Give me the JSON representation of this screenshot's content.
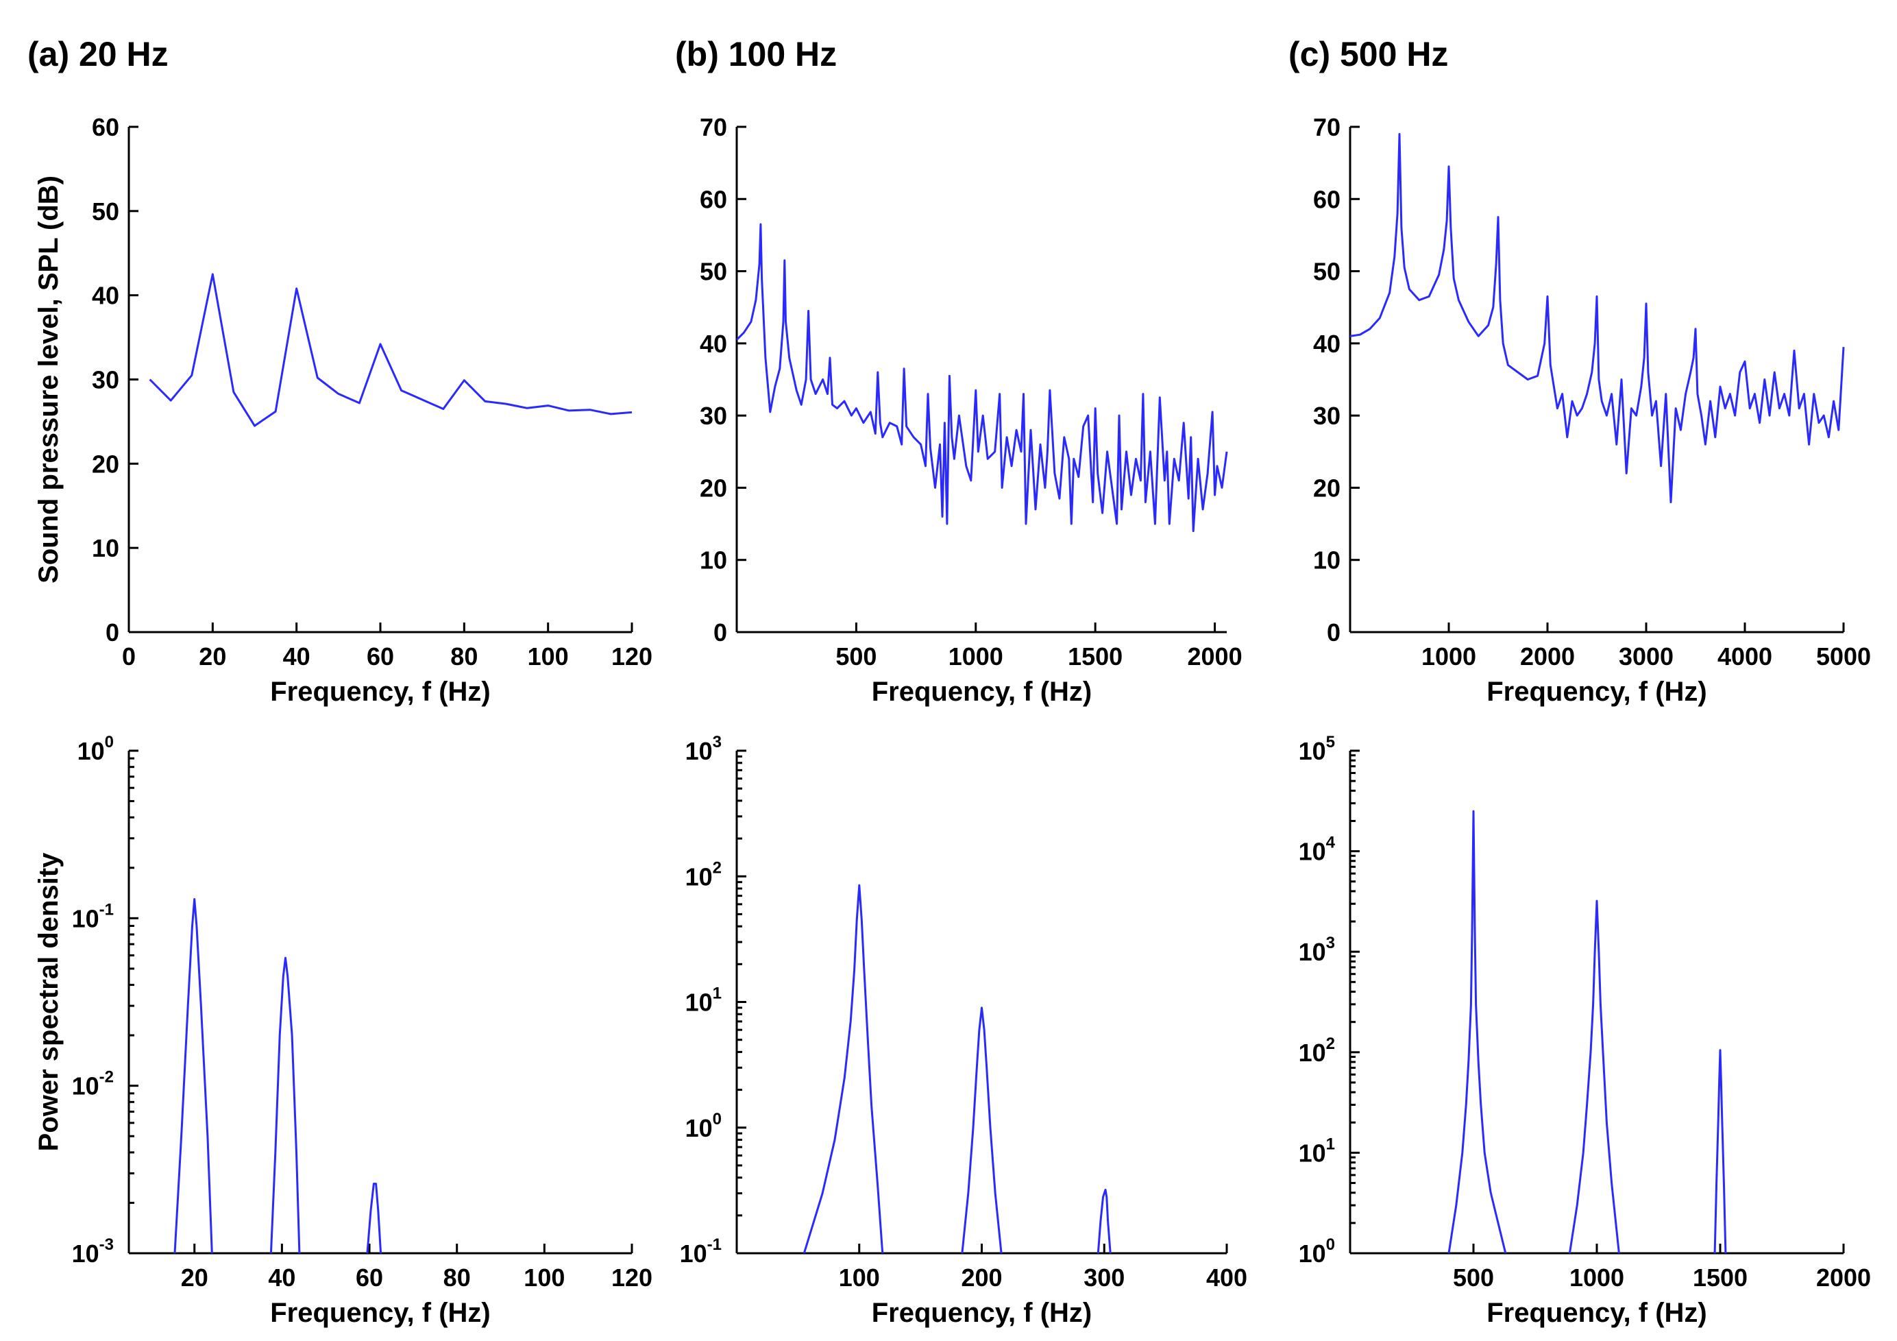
{
  "series_color": "#2a2aff",
  "chart_data": [
    {
      "id": "a-spl",
      "title": "(a) 20 Hz",
      "type": "line",
      "yscale": "linear",
      "xlabel": "Frequency, f (Hz)",
      "ylabel": "Sound pressure level, SPL (dB)",
      "xlim": [
        0,
        120
      ],
      "ylim": [
        0,
        60
      ],
      "xticks": [
        {
          "v": 0,
          "label": "0"
        },
        {
          "v": 20,
          "label": "20"
        },
        {
          "v": 40,
          "label": "40"
        },
        {
          "v": 60,
          "label": "60"
        },
        {
          "v": 80,
          "label": "80"
        },
        {
          "v": 100,
          "label": "100"
        },
        {
          "v": 120,
          "label": "120"
        }
      ],
      "yticks": [
        {
          "v": 0,
          "label": "0"
        },
        {
          "v": 10,
          "label": "10"
        },
        {
          "v": 20,
          "label": "20"
        },
        {
          "v": 30,
          "label": "30"
        },
        {
          "v": 40,
          "label": "40"
        },
        {
          "v": 50,
          "label": "50"
        },
        {
          "v": 60,
          "label": "60"
        }
      ],
      "x": [
        5,
        10,
        15,
        20,
        25,
        30,
        35,
        40,
        45,
        50,
        55,
        60,
        65,
        70,
        75,
        80,
        85,
        90,
        95,
        100,
        105,
        110,
        115,
        120
      ],
      "y": [
        30.0,
        27.5,
        30.5,
        42.5,
        28.5,
        24.5,
        26.2,
        40.8,
        30.2,
        28.3,
        27.2,
        34.2,
        28.7,
        27.6,
        26.5,
        29.9,
        27.4,
        27.1,
        26.6,
        26.9,
        26.3,
        26.4,
        25.9,
        26.1
      ]
    },
    {
      "id": "b-spl",
      "title": "(b) 100 Hz",
      "type": "line",
      "yscale": "linear",
      "xlabel": "Frequency, f (Hz)",
      "ylabel": "",
      "xlim": [
        0,
        2050
      ],
      "ylim": [
        0,
        70
      ],
      "xticks": [
        {
          "v": 500,
          "label": "500"
        },
        {
          "v": 1000,
          "label": "1000"
        },
        {
          "v": 1500,
          "label": "1500"
        },
        {
          "v": 2000,
          "label": "2000"
        }
      ],
      "yticks": [
        {
          "v": 0,
          "label": "0"
        },
        {
          "v": 10,
          "label": "10"
        },
        {
          "v": 20,
          "label": "20"
        },
        {
          "v": 30,
          "label": "30"
        },
        {
          "v": 40,
          "label": "40"
        },
        {
          "v": 50,
          "label": "50"
        },
        {
          "v": 60,
          "label": "60"
        },
        {
          "v": 70,
          "label": "70"
        }
      ],
      "x": [
        0,
        30,
        60,
        80,
        95,
        100,
        105,
        120,
        140,
        160,
        180,
        195,
        200,
        205,
        220,
        250,
        270,
        290,
        300,
        310,
        330,
        360,
        380,
        390,
        400,
        420,
        450,
        480,
        500,
        530,
        560,
        580,
        590,
        600,
        610,
        640,
        670,
        690,
        700,
        710,
        740,
        770,
        790,
        800,
        810,
        830,
        850,
        860,
        870,
        880,
        890,
        900,
        910,
        930,
        960,
        980,
        1000,
        1010,
        1030,
        1050,
        1080,
        1100,
        1110,
        1130,
        1150,
        1170,
        1190,
        1200,
        1210,
        1230,
        1250,
        1270,
        1290,
        1300,
        1310,
        1330,
        1350,
        1370,
        1390,
        1400,
        1410,
        1430,
        1450,
        1470,
        1490,
        1500,
        1510,
        1530,
        1550,
        1570,
        1590,
        1600,
        1610,
        1630,
        1650,
        1670,
        1690,
        1700,
        1710,
        1730,
        1750,
        1770,
        1790,
        1800,
        1810,
        1830,
        1850,
        1870,
        1890,
        1900,
        1910,
        1930,
        1950,
        1970,
        1990,
        2000,
        2010,
        2030,
        2050
      ],
      "y": [
        40.5,
        41.5,
        43,
        46,
        51,
        56.5,
        49,
        38,
        30.5,
        34,
        36.5,
        43,
        51.5,
        43,
        38,
        33.5,
        31.5,
        35,
        44.5,
        35,
        33,
        35,
        33,
        38,
        31.5,
        31,
        32,
        30,
        31,
        29,
        30.5,
        27.5,
        36,
        29,
        27,
        29,
        28.5,
        26,
        36.5,
        28.5,
        27,
        26,
        23,
        33,
        25.5,
        20,
        26,
        16,
        29,
        15,
        35.5,
        27,
        24,
        30,
        23,
        21,
        33.5,
        25,
        30,
        24,
        25,
        33,
        20,
        27,
        23,
        28,
        25,
        33,
        15,
        28,
        17,
        26,
        20,
        25,
        33.5,
        22,
        18.5,
        27,
        24,
        15,
        24,
        21.5,
        28.5,
        30,
        18,
        31,
        22,
        16.5,
        25,
        20,
        15,
        30,
        17,
        25,
        19,
        24,
        21,
        33,
        18,
        25,
        15,
        32.5,
        21,
        25,
        15,
        24,
        21,
        29,
        18.5,
        27,
        14,
        24,
        17,
        22,
        30.5,
        19,
        23,
        20,
        25
      ]
    },
    {
      "id": "c-spl",
      "title": "(c) 500 Hz",
      "type": "line",
      "yscale": "linear",
      "xlabel": "Frequency, f (Hz)",
      "ylabel": "",
      "xlim": [
        0,
        5000
      ],
      "ylim": [
        0,
        70
      ],
      "xticks": [
        {
          "v": 1000,
          "label": "1000"
        },
        {
          "v": 2000,
          "label": "2000"
        },
        {
          "v": 3000,
          "label": "3000"
        },
        {
          "v": 4000,
          "label": "4000"
        },
        {
          "v": 5000,
          "label": "5000"
        }
      ],
      "yticks": [
        {
          "v": 0,
          "label": "0"
        },
        {
          "v": 10,
          "label": "10"
        },
        {
          "v": 20,
          "label": "20"
        },
        {
          "v": 30,
          "label": "30"
        },
        {
          "v": 40,
          "label": "40"
        },
        {
          "v": 50,
          "label": "50"
        },
        {
          "v": 60,
          "label": "60"
        },
        {
          "v": 70,
          "label": "70"
        }
      ],
      "x": [
        0,
        100,
        200,
        300,
        400,
        450,
        480,
        500,
        520,
        550,
        600,
        700,
        800,
        900,
        950,
        980,
        1000,
        1020,
        1050,
        1100,
        1200,
        1300,
        1400,
        1450,
        1480,
        1500,
        1520,
        1550,
        1600,
        1700,
        1800,
        1900,
        1970,
        2000,
        2030,
        2100,
        2150,
        2200,
        2250,
        2300,
        2350,
        2400,
        2450,
        2480,
        2500,
        2520,
        2550,
        2600,
        2650,
        2700,
        2750,
        2800,
        2850,
        2900,
        2950,
        2980,
        3000,
        3020,
        3060,
        3100,
        3150,
        3200,
        3250,
        3300,
        3350,
        3400,
        3450,
        3480,
        3500,
        3520,
        3560,
        3600,
        3650,
        3700,
        3750,
        3800,
        3850,
        3900,
        3950,
        4000,
        4050,
        4100,
        4150,
        4200,
        4250,
        4300,
        4350,
        4400,
        4450,
        4500,
        4550,
        4600,
        4650,
        4700,
        4750,
        4800,
        4850,
        4900,
        4950,
        5000
      ],
      "y": [
        41,
        41.2,
        42,
        43.5,
        47,
        52,
        58,
        69,
        56,
        50.5,
        47.5,
        46,
        46.5,
        49.5,
        53,
        57,
        64.5,
        56,
        49,
        46,
        43,
        41,
        42.5,
        45,
        51,
        57.5,
        46,
        40,
        37,
        36,
        35,
        35.5,
        40,
        46.5,
        37,
        31,
        33,
        27,
        32,
        30,
        31,
        33,
        36,
        40,
        46.5,
        35,
        32,
        30,
        33,
        26,
        35,
        22,
        31,
        30,
        34,
        38,
        45.5,
        36,
        30,
        32,
        23,
        33,
        18,
        31,
        28,
        33,
        36,
        38,
        42,
        33,
        30,
        26,
        32,
        27,
        34,
        31,
        33,
        30,
        36,
        37.5,
        31,
        33,
        29,
        35,
        30,
        36,
        31,
        33,
        30,
        39,
        31,
        33,
        26,
        33,
        29,
        30,
        27,
        32,
        28,
        39.5
      ]
    },
    {
      "id": "a-psd",
      "title": "",
      "type": "line",
      "yscale": "log",
      "xlabel": "Frequency, f (Hz)",
      "ylabel": "Power spectral density",
      "xlim": [
        5,
        120
      ],
      "ylim": [
        0.001,
        1
      ],
      "xticks": [
        {
          "v": 20,
          "label": "20"
        },
        {
          "v": 40,
          "label": "40"
        },
        {
          "v": 60,
          "label": "60"
        },
        {
          "v": 80,
          "label": "80"
        },
        {
          "v": 100,
          "label": "100"
        },
        {
          "v": 120,
          "label": "120"
        }
      ],
      "yticks": [
        {
          "v": 0.001,
          "base": "10",
          "exp": "-3"
        },
        {
          "v": 0.01,
          "base": "10",
          "exp": "-2"
        },
        {
          "v": 0.1,
          "base": "10",
          "exp": "-1"
        },
        {
          "v": 1,
          "base": "10",
          "exp": "0"
        }
      ],
      "segments": [
        {
          "x": [
            15.5,
            17,
            18.5,
            19.5,
            20,
            20.5,
            21.5,
            23,
            24
          ],
          "y": [
            0.001,
            0.005,
            0.03,
            0.09,
            0.13,
            0.09,
            0.03,
            0.005,
            0.001
          ]
        },
        {
          "x": [
            37.5,
            38.5,
            39.5,
            40.3,
            40.8,
            41.3,
            42.3,
            43.3,
            44
          ],
          "y": [
            0.001,
            0.004,
            0.02,
            0.045,
            0.058,
            0.045,
            0.02,
            0.004,
            0.001
          ]
        },
        {
          "x": [
            59.5,
            60.3,
            61,
            61.5,
            62,
            62.6
          ],
          "y": [
            0.001,
            0.0018,
            0.0026,
            0.0026,
            0.0018,
            0.001
          ]
        }
      ]
    },
    {
      "id": "b-psd",
      "title": "",
      "type": "line",
      "yscale": "log",
      "xlabel": "Frequency, f (Hz)",
      "ylabel": "",
      "xlim": [
        0,
        400
      ],
      "ylim": [
        0.1,
        1000
      ],
      "xticks": [
        {
          "v": 100,
          "label": "100"
        },
        {
          "v": 200,
          "label": "200"
        },
        {
          "v": 300,
          "label": "300"
        },
        {
          "v": 400,
          "label": "400"
        }
      ],
      "yticks": [
        {
          "v": 0.1,
          "base": "10",
          "exp": "-1"
        },
        {
          "v": 1,
          "base": "10",
          "exp": "0"
        },
        {
          "v": 10,
          "base": "10",
          "exp": "1"
        },
        {
          "v": 100,
          "base": "10",
          "exp": "2"
        },
        {
          "v": 1000,
          "base": "10",
          "exp": "3"
        }
      ],
      "segments": [
        {
          "x": [
            55,
            70,
            80,
            88,
            93,
            96,
            98,
            100,
            102,
            104,
            107,
            110,
            115,
            119
          ],
          "y": [
            0.1,
            0.3,
            0.8,
            2.5,
            7,
            18,
            45,
            85,
            45,
            18,
            5,
            1.5,
            0.35,
            0.1
          ]
        },
        {
          "x": [
            184,
            189,
            193,
            196,
            198,
            200,
            202,
            204,
            207,
            211,
            216
          ],
          "y": [
            0.1,
            0.3,
            1,
            3,
            6,
            9,
            6,
            3,
            1,
            0.3,
            0.1
          ]
        },
        {
          "x": [
            295,
            297,
            299,
            301,
            302,
            303,
            305
          ],
          "y": [
            0.1,
            0.18,
            0.28,
            0.32,
            0.28,
            0.18,
            0.1
          ]
        }
      ]
    },
    {
      "id": "c-psd",
      "title": "",
      "type": "line",
      "yscale": "log",
      "xlabel": "Frequency, f (Hz)",
      "ylabel": "",
      "xlim": [
        0,
        2000
      ],
      "ylim": [
        1,
        100000
      ],
      "xticks": [
        {
          "v": 500,
          "label": "500"
        },
        {
          "v": 1000,
          "label": "1000"
        },
        {
          "v": 1500,
          "label": "1500"
        },
        {
          "v": 2000,
          "label": "2000"
        }
      ],
      "yticks": [
        {
          "v": 1,
          "base": "10",
          "exp": "0"
        },
        {
          "v": 10,
          "base": "10",
          "exp": "1"
        },
        {
          "v": 100,
          "base": "10",
          "exp": "2"
        },
        {
          "v": 1000,
          "base": "10",
          "exp": "3"
        },
        {
          "v": 10000,
          "base": "10",
          "exp": "4"
        },
        {
          "v": 100000,
          "base": "10",
          "exp": "5"
        }
      ],
      "segments": [
        {
          "x": [
            400,
            430,
            455,
            470,
            480,
            490,
            495,
            500,
            505,
            510,
            520,
            530,
            545,
            570,
            600,
            630
          ],
          "y": [
            1,
            3,
            10,
            30,
            80,
            300,
            2000,
            25000,
            2000,
            300,
            80,
            30,
            10,
            4,
            2,
            1
          ]
        },
        {
          "x": [
            890,
            920,
            945,
            960,
            975,
            985,
            992,
            1000,
            1008,
            1015,
            1025,
            1040,
            1060,
            1090
          ],
          "y": [
            1,
            3,
            10,
            30,
            100,
            300,
            1000,
            3200,
            1000,
            300,
            100,
            20,
            5,
            1
          ]
        },
        {
          "x": [
            1478,
            1485,
            1492,
            1496,
            1500,
            1504,
            1508,
            1515,
            1522
          ],
          "y": [
            1,
            5,
            20,
            50,
            105,
            50,
            20,
            5,
            1
          ]
        }
      ]
    }
  ]
}
